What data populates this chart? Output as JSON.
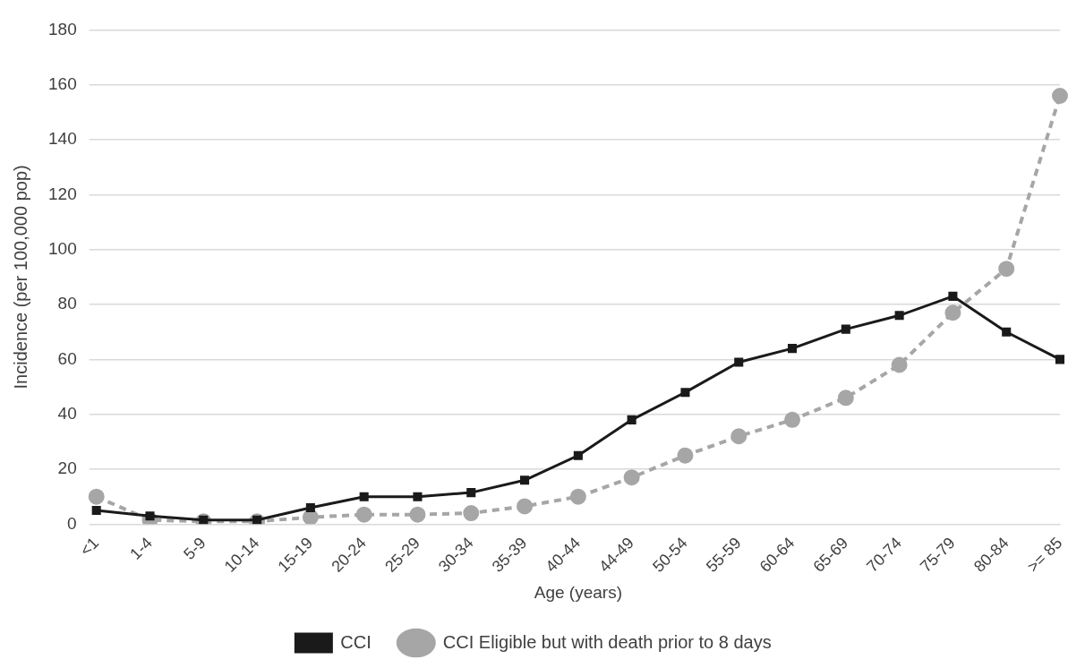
{
  "chart_data": {
    "type": "line",
    "xlabel": "Age (years)",
    "ylabel": "Incidence (per 100,000 pop)",
    "categories": [
      "<1",
      "1-4",
      "5-9",
      "10-14",
      "15-19",
      "20-24",
      "25-29",
      "30-34",
      "35-39",
      "40-44",
      "44-49",
      "50-54",
      "55-59",
      "60-64",
      "65-69",
      "70-74",
      "75-79",
      "80-84",
      ">= 85"
    ],
    "series": [
      {
        "name": "CCI",
        "color": "#1a1a1a",
        "marker": "square",
        "line_style": "solid",
        "values": [
          5,
          3,
          1.5,
          1.5,
          6,
          10,
          10,
          11.5,
          16,
          25,
          38,
          48,
          59,
          64,
          71,
          76,
          83,
          70,
          60
        ]
      },
      {
        "name": "CCI Eligible but with death prior to 8 days",
        "color": "#a6a6a6",
        "marker": "circle",
        "line_style": "dashed",
        "values": [
          10,
          1.5,
          1,
          1,
          2.5,
          3.5,
          3.5,
          4,
          6.5,
          10,
          17,
          25,
          32,
          38,
          46,
          58,
          77,
          93,
          156
        ]
      }
    ],
    "ylim": [
      0,
      180
    ],
    "yticks": [
      0,
      20,
      40,
      60,
      80,
      100,
      120,
      140,
      160,
      180
    ],
    "grid": "y",
    "legend": "bottom"
  }
}
